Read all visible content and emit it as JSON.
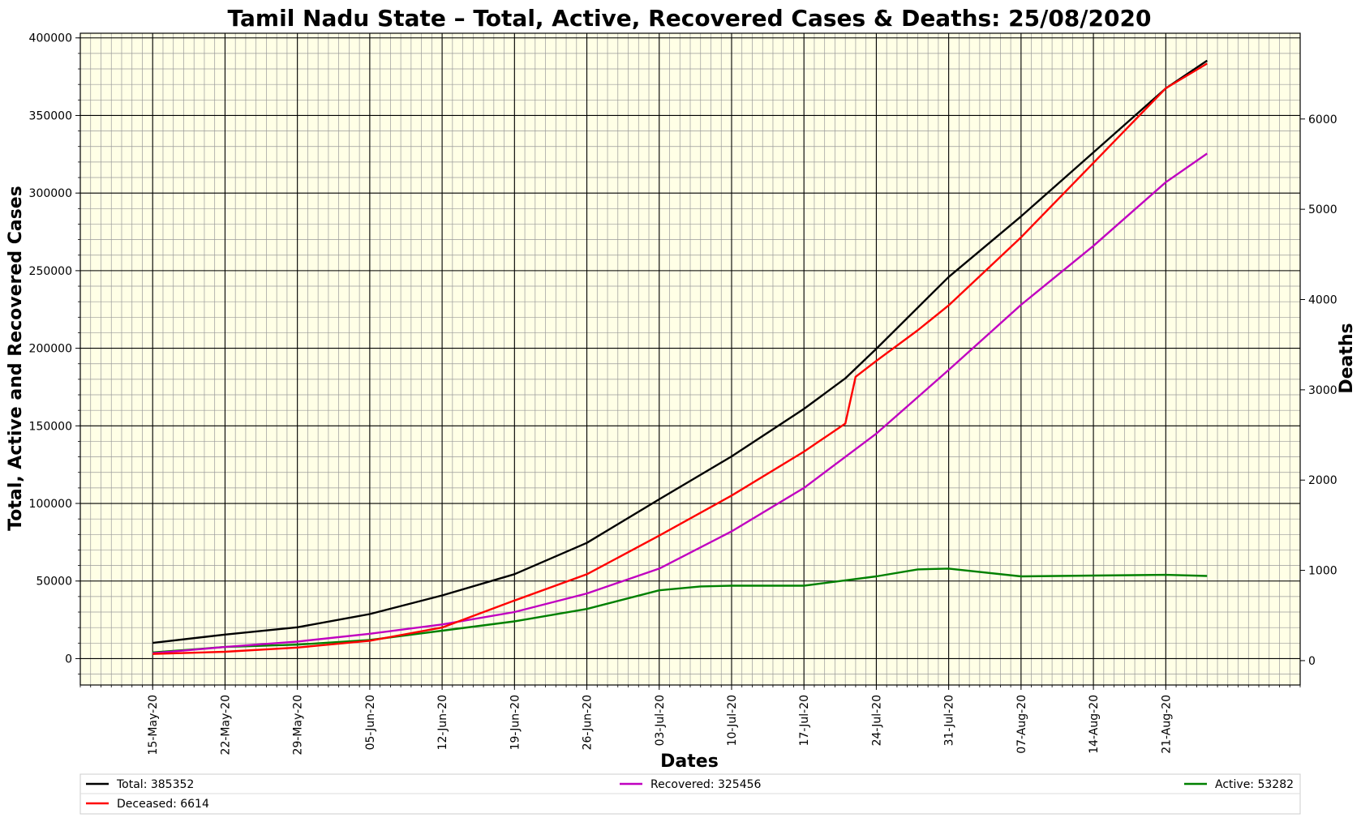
{
  "chart_data": {
    "type": "line",
    "title": "Tamil Nadu State – Total, Active, Recovered Cases & Deaths: 25/08/2020",
    "xlabel": "Dates",
    "ylabel": "Total, Active and Recovered Cases",
    "y2label": "Deaths",
    "xlim": [
      "2020-05-08",
      "2020-09-03"
    ],
    "ylim": [
      -17000,
      403000
    ],
    "y2lim": [
      -270,
      6950
    ],
    "yticks": [
      0,
      50000,
      100000,
      150000,
      200000,
      250000,
      300000,
      350000,
      400000
    ],
    "yticklabels": [
      "0",
      "50000",
      "100000",
      "150000",
      "200000",
      "250000",
      "300000",
      "350000",
      "400000"
    ],
    "y2ticks": [
      0,
      1000,
      2000,
      3000,
      4000,
      5000,
      6000
    ],
    "y2ticklabels": [
      "0",
      "1000",
      "2000",
      "3000",
      "4000",
      "5000",
      "6000"
    ],
    "xticks": [
      "2020-05-15",
      "2020-05-22",
      "2020-05-29",
      "2020-06-05",
      "2020-06-12",
      "2020-06-19",
      "2020-06-26",
      "2020-07-03",
      "2020-07-10",
      "2020-07-17",
      "2020-07-24",
      "2020-07-31",
      "2020-08-07",
      "2020-08-14",
      "2020-08-21"
    ],
    "xticklabels": [
      "15-May-20",
      "22-May-20",
      "29-May-20",
      "05-Jun-20",
      "12-Jun-20",
      "19-Jun-20",
      "26-Jun-20",
      "03-Jul-20",
      "10-Jul-20",
      "17-Jul-20",
      "24-Jul-20",
      "31-Jul-20",
      "07-Aug-20",
      "14-Aug-20",
      "21-Aug-20"
    ],
    "grid": true,
    "background_color": "#ffffe6",
    "legend_placement": "bottom",
    "series": [
      {
        "name": "Total: 385352",
        "axis": "left",
        "color": "#000000",
        "x": [
          "2020-05-15",
          "2020-05-22",
          "2020-05-29",
          "2020-06-05",
          "2020-06-12",
          "2020-06-19",
          "2020-06-26",
          "2020-07-03",
          "2020-07-10",
          "2020-07-17",
          "2020-07-21",
          "2020-07-24",
          "2020-07-31",
          "2020-08-07",
          "2020-08-14",
          "2020-08-21",
          "2020-08-25"
        ],
        "y": [
          10100,
          15500,
          20200,
          28700,
          40700,
          54400,
          74600,
          102700,
          130300,
          160900,
          180600,
          199700,
          245900,
          285000,
          326200,
          367500,
          385352
        ]
      },
      {
        "name": "Deceased: 6614",
        "axis": "right",
        "color": "#ff0000",
        "x": [
          "2020-05-15",
          "2020-05-22",
          "2020-05-29",
          "2020-06-05",
          "2020-06-12",
          "2020-06-19",
          "2020-06-26",
          "2020-07-03",
          "2020-07-10",
          "2020-07-17",
          "2020-07-21",
          "2020-07-22",
          "2020-07-24",
          "2020-07-28",
          "2020-07-31",
          "2020-08-07",
          "2020-08-14",
          "2020-08-21",
          "2020-08-25"
        ],
        "y": [
          74,
          98,
          145,
          220,
          367,
          666,
          957,
          1385,
          1829,
          2315,
          2626,
          3144,
          3320,
          3659,
          3935,
          4690,
          5514,
          6340,
          6614
        ]
      },
      {
        "name": "Recovered: 325456",
        "axis": "left",
        "color": "#c000c0",
        "x": [
          "2020-05-15",
          "2020-05-22",
          "2020-05-29",
          "2020-06-05",
          "2020-06-12",
          "2020-06-19",
          "2020-06-26",
          "2020-07-03",
          "2020-07-10",
          "2020-07-17",
          "2020-07-24",
          "2020-07-31",
          "2020-08-07",
          "2020-08-14",
          "2020-08-21",
          "2020-08-25"
        ],
        "y": [
          3500,
          7500,
          11000,
          16000,
          22000,
          30000,
          42000,
          58000,
          82000,
          110000,
          145000,
          186000,
          228000,
          266000,
          307000,
          325456
        ]
      },
      {
        "name": "Active: 53282",
        "axis": "left",
        "color": "#008000",
        "x": [
          "2020-05-15",
          "2020-05-22",
          "2020-05-29",
          "2020-06-05",
          "2020-06-12",
          "2020-06-19",
          "2020-06-26",
          "2020-07-03",
          "2020-07-07",
          "2020-07-10",
          "2020-07-17",
          "2020-07-24",
          "2020-07-28",
          "2020-07-31",
          "2020-08-07",
          "2020-08-14",
          "2020-08-21",
          "2020-08-25"
        ],
        "y": [
          4000,
          7500,
          9000,
          12000,
          18000,
          24000,
          32000,
          44000,
          46500,
          47000,
          47000,
          53000,
          57500,
          58000,
          53000,
          53500,
          54000,
          53282
        ]
      }
    ]
  }
}
